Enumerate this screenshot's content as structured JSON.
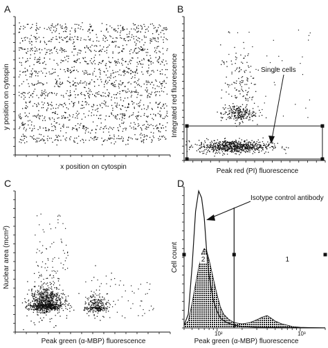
{
  "chart_data": [
    {
      "panel": "A",
      "type": "scatter",
      "xlabel": "x position on cytospin",
      "ylabel": "y position on cytospin",
      "description_points": "dense banded scatter of cell positions in horizontal stripes",
      "bands_y": [
        0.92,
        0.84,
        0.76,
        0.68,
        0.6,
        0.52,
        0.44,
        0.36,
        0.28,
        0.2,
        0.12
      ],
      "xlim": [
        0,
        1
      ],
      "ylim": [
        0,
        1
      ]
    },
    {
      "panel": "B",
      "type": "scatter",
      "xlabel": "Peak red (PI) fluorescence",
      "ylabel": "Integrated red fluorescence",
      "clusters": [
        {
          "x": 0.35,
          "y": 0.1,
          "n": 700
        },
        {
          "x": 0.38,
          "y": 0.33,
          "n": 220
        },
        {
          "x": 0.4,
          "y": 0.5,
          "n": 70
        },
        {
          "x": 0.38,
          "y": 0.68,
          "n": 40
        }
      ],
      "gate": {
        "x0": 0.02,
        "x1": 0.98,
        "y0": 0.01,
        "y1": 0.24
      },
      "annotations": [
        "Single cells"
      ],
      "xlim": [
        0,
        1
      ],
      "ylim": [
        0,
        1
      ]
    },
    {
      "panel": "C",
      "type": "scatter",
      "xlabel": "Peak green (α-MBP) fluorescence",
      "ylabel": "Nuclear area (mcm²)",
      "clusters": [
        {
          "x": 0.2,
          "y": 0.2,
          "n": 900
        },
        {
          "x": 0.52,
          "y": 0.18,
          "n": 250
        }
      ],
      "xlim": [
        0,
        1
      ],
      "ylim": [
        0,
        1
      ]
    },
    {
      "panel": "D",
      "type": "area",
      "xlabel": "Peak green (α-MBP) fluorescence",
      "ylabel": "Cell count",
      "x_scale": "log",
      "xlim": [
        40,
        2000
      ],
      "x_ticks": [
        {
          "value": 100,
          "label": "10²"
        },
        {
          "value": 1000,
          "label": "10³"
        }
      ],
      "series": [
        {
          "role": "isotype control outline",
          "x": [
            40,
            45,
            50,
            55,
            60,
            65,
            70,
            75,
            80,
            90,
            100,
            110,
            130,
            160,
            200,
            300,
            500,
            1000,
            2000
          ],
          "y": [
            0.02,
            0.1,
            0.45,
            0.85,
            1.0,
            0.95,
            0.8,
            0.55,
            0.38,
            0.2,
            0.12,
            0.07,
            0.04,
            0.02,
            0.01,
            0.005,
            0.003,
            0.002,
            0.001
          ]
        },
        {
          "role": "alpha-MBP filled histogram",
          "x": [
            40,
            45,
            50,
            55,
            60,
            65,
            70,
            75,
            80,
            90,
            100,
            110,
            120,
            140,
            160,
            200,
            250,
            300,
            350,
            400,
            450,
            500,
            600,
            700,
            800,
            1000,
            2000
          ],
          "y": [
            0.02,
            0.05,
            0.18,
            0.32,
            0.44,
            0.54,
            0.58,
            0.56,
            0.5,
            0.36,
            0.24,
            0.15,
            0.1,
            0.06,
            0.04,
            0.03,
            0.04,
            0.06,
            0.08,
            0.09,
            0.07,
            0.05,
            0.03,
            0.02,
            0.01,
            0.005,
            0.0
          ]
        }
      ],
      "gate_line_x": 160,
      "region_labels": [
        "2",
        "1"
      ],
      "annotations": [
        "Isotype control antibody"
      ],
      "ylim": [
        0,
        1
      ]
    }
  ],
  "text": {
    "panelA": "A",
    "panelB": "B",
    "panelC": "C",
    "panelD": "D",
    "A_ylabel": "y position on cytospin",
    "A_xlabel": "x position on cytospin",
    "B_ylabel": "Integrated red fluorescence",
    "B_xlabel": "Peak red (PI) fluorescence",
    "B_annot": "Single cells",
    "C_ylabel": "Nuclear area (mcm²)",
    "C_xlabel": "Peak green (α-MBP) fluorescence",
    "D_ylabel": "Cell count",
    "D_xlabel": "Peak green (α-MBP) fluorescence",
    "D_annot": "Isotype control antibody",
    "D_region2": "2",
    "D_region1": "1",
    "D_tick1": "10²",
    "D_tick2": "10³"
  }
}
